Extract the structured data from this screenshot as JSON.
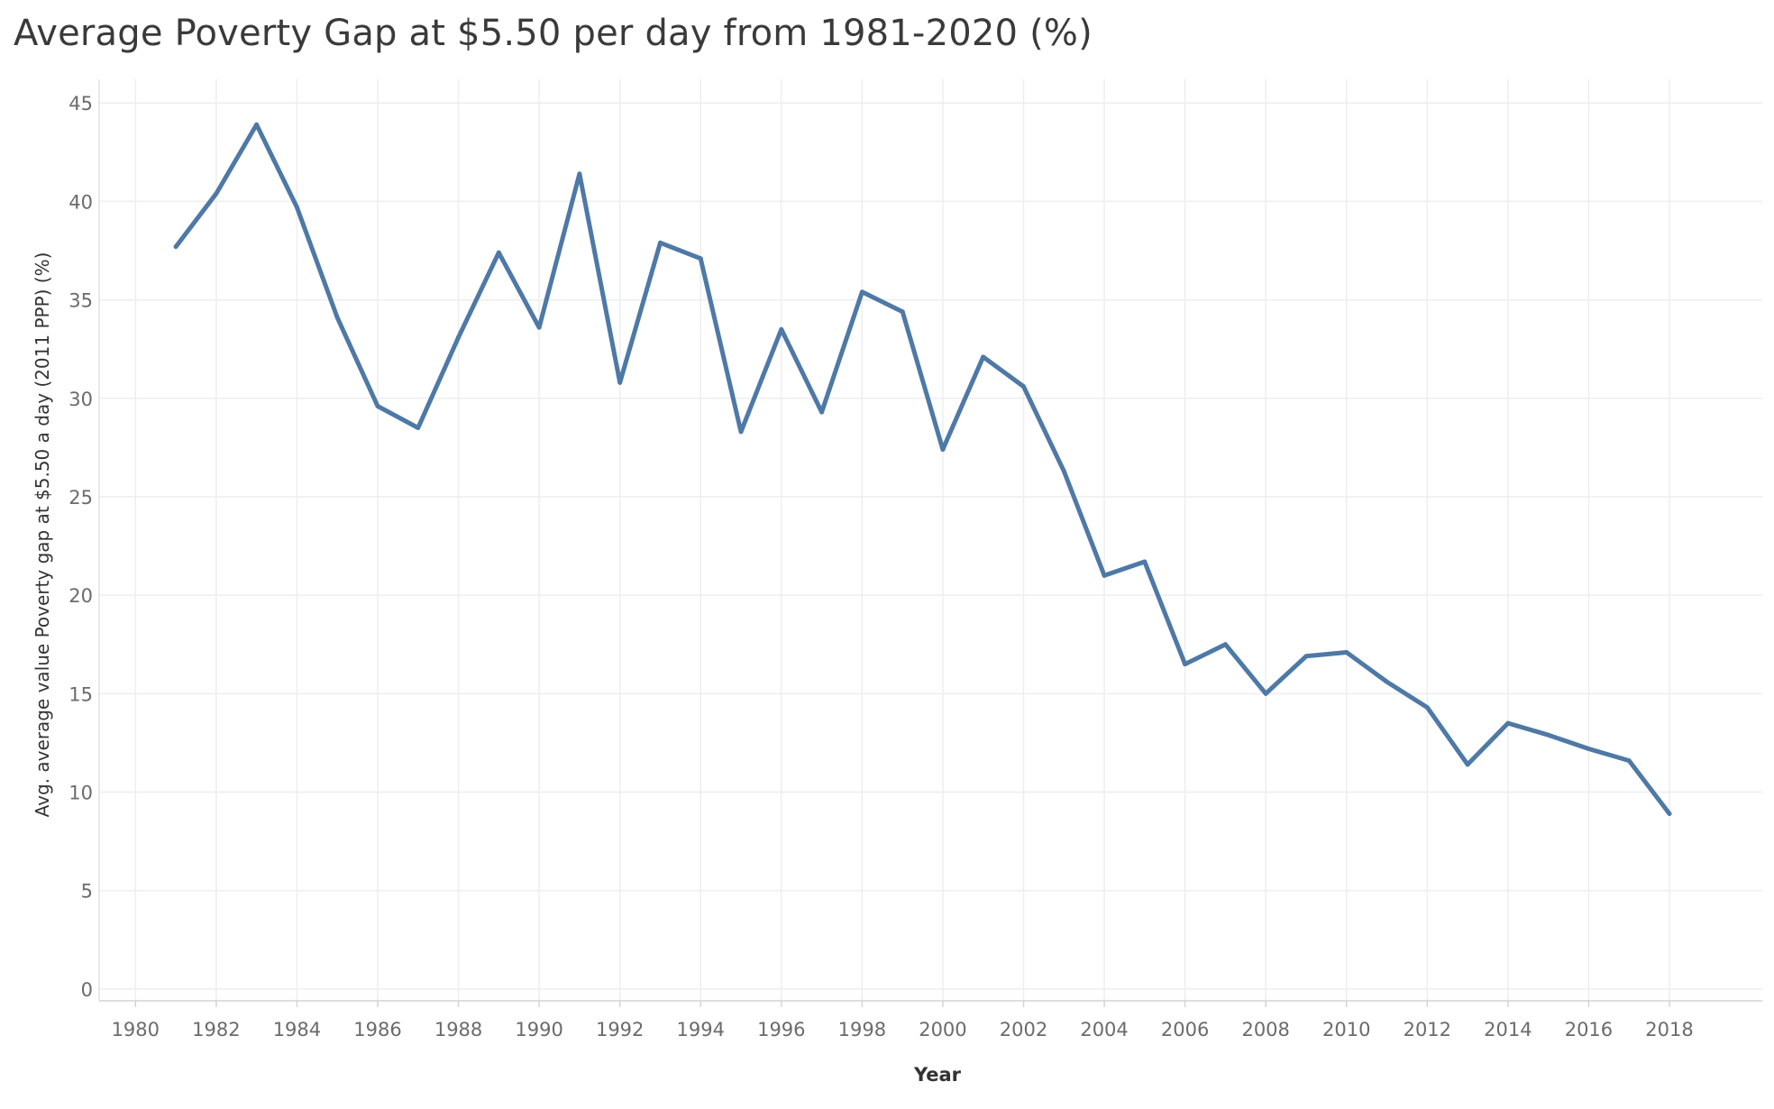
{
  "chart_data": {
    "type": "line",
    "title": "Average Poverty Gap at $5.50 per day from 1981-2020 (%)",
    "xlabel": "Year",
    "ylabel": "Avg. average value Poverty gap at $5.50 a day (2011 PPP) (%)",
    "x_ticks": [
      "1980",
      "1982",
      "1984",
      "1986",
      "1988",
      "1990",
      "1992",
      "1994",
      "1996",
      "1998",
      "2000",
      "2002",
      "2004",
      "2006",
      "2008",
      "2010",
      "2012",
      "2014",
      "2016",
      "2018"
    ],
    "y_ticks": [
      "0",
      "5",
      "10",
      "15",
      "20",
      "25",
      "30",
      "35",
      "40",
      "45"
    ],
    "xlim": [
      1979.1,
      2020.3
    ],
    "ylim": [
      -0.6,
      46.2
    ],
    "grid": true,
    "line_color": "#4e79a7",
    "series": [
      {
        "x": [
          1981,
          1982,
          1983,
          1984,
          1985,
          1986,
          1987,
          1988,
          1989,
          1990,
          1991,
          1992,
          1993,
          1994,
          1995,
          1996,
          1997,
          1998,
          1999,
          2000,
          2001,
          2002,
          2003,
          2004,
          2005,
          2006,
          2007,
          2008,
          2009,
          2010,
          2011,
          2012,
          2013,
          2014,
          2015,
          2016,
          2017,
          2018
        ],
        "values": [
          37.7,
          40.4,
          43.9,
          39.7,
          34.1,
          29.6,
          28.5,
          33.1,
          37.4,
          33.6,
          41.4,
          30.8,
          37.9,
          37.1,
          28.3,
          33.5,
          29.3,
          35.4,
          34.4,
          27.4,
          32.1,
          30.6,
          26.3,
          21.0,
          21.7,
          16.5,
          17.5,
          15.0,
          16.9,
          17.1,
          15.6,
          14.3,
          11.4,
          13.5,
          12.9,
          12.2,
          11.6,
          8.9
        ]
      }
    ]
  }
}
